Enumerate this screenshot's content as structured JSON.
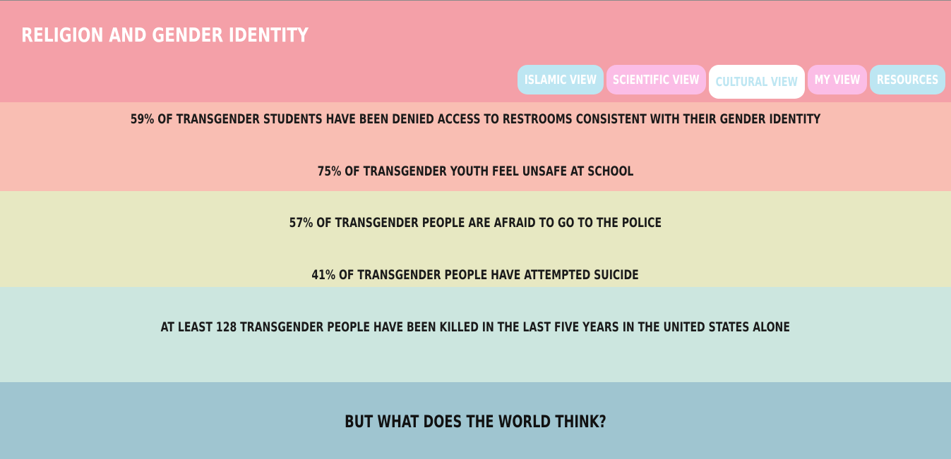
{
  "site": {
    "title": "RELIGION AND GENDER IDENTITY"
  },
  "nav": {
    "tabs": [
      {
        "label": "ISLAMIC VIEW",
        "color": "#bde6f2",
        "active": false
      },
      {
        "label": "SCIENTIFIC VIEW",
        "color": "#fbbde6",
        "active": false
      },
      {
        "label": "CULTURAL VIEW",
        "color": "#ffffff",
        "active": true
      },
      {
        "label": "MY VIEW",
        "color": "#fbbde6",
        "active": false
      },
      {
        "label": "RESOURCES",
        "color": "#bde6f2",
        "active": false
      }
    ]
  },
  "stats": [
    "59% OF TRANSGENDER STUDENTS HAVE BEEN DENIED ACCESS TO RESTROOMS CONSISTENT WITH THEIR GENDER IDENTITY",
    "75% OF TRANSGENDER YOUTH FEEL UNSAFE AT SCHOOL",
    "57% OF TRANSGENDER PEOPLE ARE AFRAID TO GO TO THE POLICE",
    "41% OF TRANSGENDER PEOPLE HAVE ATTEMPTED SUICIDE",
    "AT LEAST 128 TRANSGENDER PEOPLE HAVE BEEN KILLED IN THE LAST FIVE YEARS IN THE UNITED STATES ALONE"
  ],
  "question": "BUT WHAT DOES THE WORLD THINK?",
  "colors": {
    "header": "#f4a0a8",
    "section_1": "#f9beb3",
    "section_2": "#e7e8c2",
    "section_3": "#cce6df",
    "section_4": "#9fc5d0",
    "tab_blue": "#bde6f2",
    "tab_pink": "#fbbde6"
  }
}
